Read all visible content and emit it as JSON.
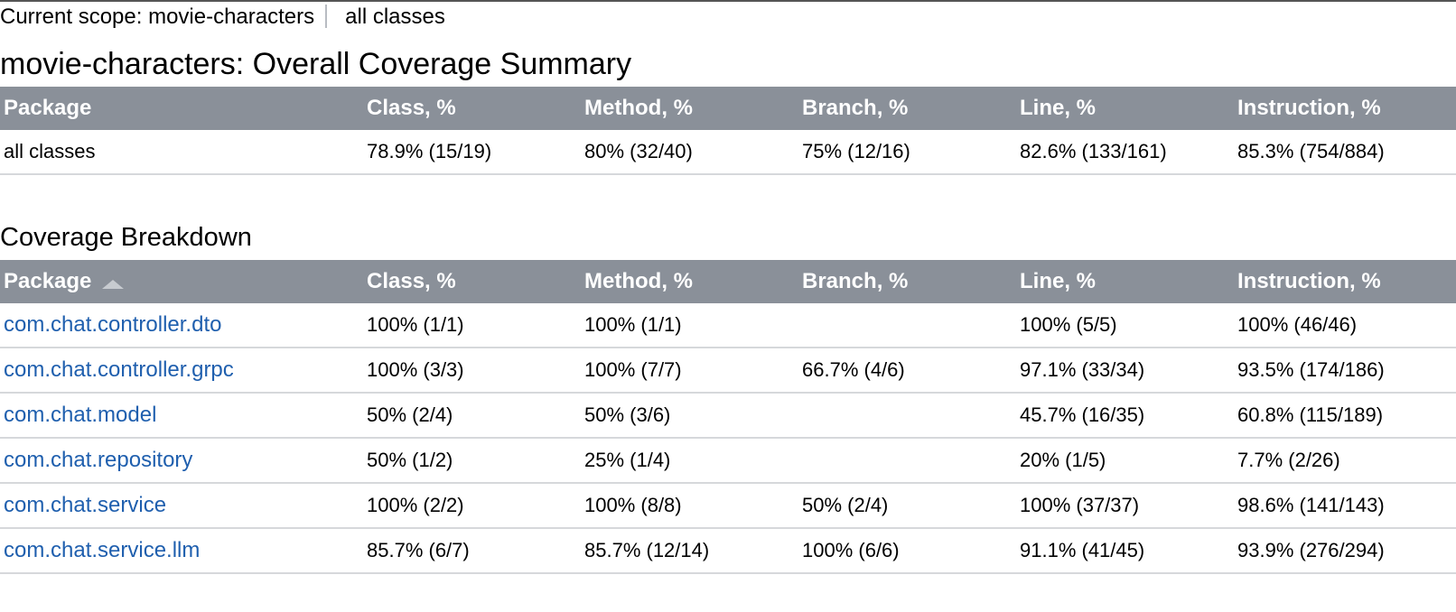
{
  "scope": {
    "prefix": "Current scope: movie-characters",
    "current": "all classes"
  },
  "summary": {
    "title": "movie-characters: Overall Coverage Summary",
    "headers": {
      "package": "Package",
      "class": "Class, %",
      "method": "Method, %",
      "branch": "Branch, %",
      "line": "Line, %",
      "instruction": "Instruction, %"
    },
    "row": {
      "package": "all classes",
      "class": "78.9% (15/19)",
      "method": "80% (32/40)",
      "branch": "75% (12/16)",
      "line": "82.6% (133/161)",
      "instruction": "85.3% (754/884)"
    }
  },
  "breakdown": {
    "title": "Coverage Breakdown",
    "sort_indicator": "sort-ascending-icon",
    "headers": {
      "package": "Package",
      "class": "Class, %",
      "method": "Method, %",
      "branch": "Branch, %",
      "line": "Line, %",
      "instruction": "Instruction, %"
    },
    "rows": [
      {
        "package": "com.chat.controller.dto",
        "class": "100% (1/1)",
        "method": "100% (1/1)",
        "branch": "",
        "line": "100% (5/5)",
        "instruction": "100% (46/46)"
      },
      {
        "package": "com.chat.controller.grpc",
        "class": "100% (3/3)",
        "method": "100% (7/7)",
        "branch": "66.7% (4/6)",
        "line": "97.1% (33/34)",
        "instruction": "93.5% (174/186)"
      },
      {
        "package": "com.chat.model",
        "class": "50% (2/4)",
        "method": "50% (3/6)",
        "branch": "",
        "line": "45.7% (16/35)",
        "instruction": "60.8% (115/189)"
      },
      {
        "package": "com.chat.repository",
        "class": "50% (1/2)",
        "method": "25% (1/4)",
        "branch": "",
        "line": "20% (1/5)",
        "instruction": "7.7% (2/26)"
      },
      {
        "package": "com.chat.service",
        "class": "100% (2/2)",
        "method": "100% (8/8)",
        "branch": "50% (2/4)",
        "line": "100% (37/37)",
        "instruction": "98.6% (141/143)"
      },
      {
        "package": "com.chat.service.llm",
        "class": "85.7% (6/7)",
        "method": "85.7% (12/14)",
        "branch": "100% (6/6)",
        "line": "91.1% (41/45)",
        "instruction": "93.9% (276/294)"
      }
    ]
  },
  "colors": {
    "header_bg": "#8a9099",
    "header_text": "#ffffff",
    "link": "#1f5fae",
    "row_border": "#d6d8db"
  }
}
